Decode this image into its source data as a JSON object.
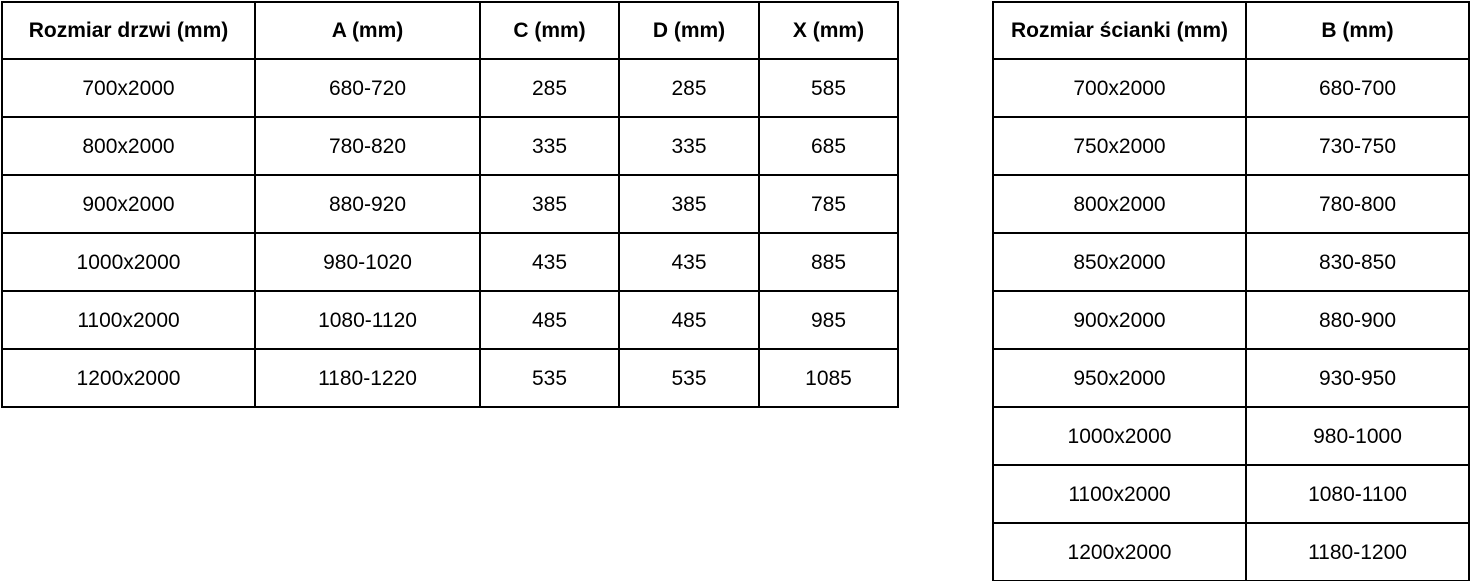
{
  "page": {
    "background_color": "#ffffff",
    "border_color": "#000000",
    "text_color": "#000000"
  },
  "door_table": {
    "headers": [
      "Rozmiar drzwi (mm)",
      "A (mm)",
      "C (mm)",
      "D (mm)",
      "X (mm)"
    ],
    "rows": [
      [
        "700x2000",
        "680-720",
        "285",
        "285",
        "585"
      ],
      [
        "800x2000",
        "780-820",
        "335",
        "335",
        "685"
      ],
      [
        "900x2000",
        "880-920",
        "385",
        "385",
        "785"
      ],
      [
        "1000x2000",
        "980-1020",
        "435",
        "435",
        "885"
      ],
      [
        "1100x2000",
        "1080-1120",
        "485",
        "485",
        "985"
      ],
      [
        "1200x2000",
        "1180-1220",
        "535",
        "535",
        "1085"
      ]
    ]
  },
  "wall_table": {
    "headers": [
      "Rozmiar ścianki (mm)",
      "B (mm)"
    ],
    "rows": [
      [
        "700x2000",
        "680-700"
      ],
      [
        "750x2000",
        "730-750"
      ],
      [
        "800x2000",
        "780-800"
      ],
      [
        "850x2000",
        "830-850"
      ],
      [
        "900x2000",
        "880-900"
      ],
      [
        "950x2000",
        "930-950"
      ],
      [
        "1000x2000",
        "980-1000"
      ],
      [
        "1100x2000",
        "1080-1100"
      ],
      [
        "1200x2000",
        "1180-1200"
      ]
    ]
  }
}
